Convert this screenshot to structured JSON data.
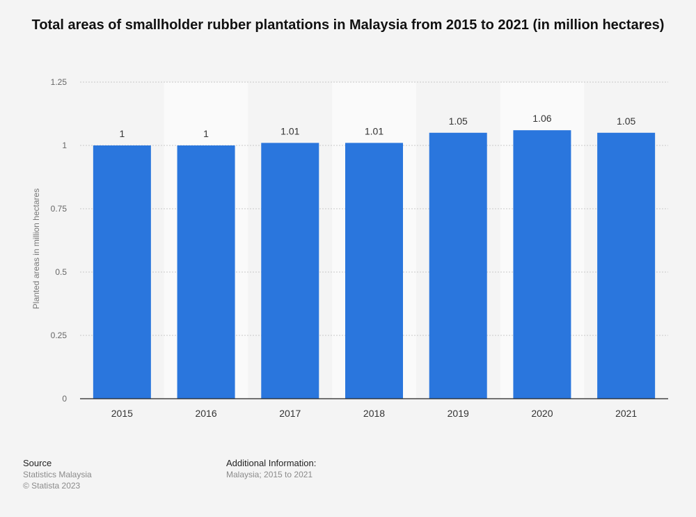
{
  "chart_data": {
    "type": "bar",
    "title": "Total areas of smallholder rubber plantations in Malaysia from 2015 to 2021 (in million hectares)",
    "categories": [
      "2015",
      "2016",
      "2017",
      "2018",
      "2019",
      "2020",
      "2021"
    ],
    "values": [
      1,
      1,
      1.01,
      1.01,
      1.05,
      1.06,
      1.05
    ],
    "value_labels": [
      "1",
      "1",
      "1.01",
      "1.01",
      "1.05",
      "1.06",
      "1.05"
    ],
    "xlabel": "",
    "ylabel": "Planted areas in million hectares",
    "ylim": [
      0,
      1.25
    ],
    "yticks": [
      0,
      0.25,
      0.5,
      0.75,
      1,
      1.25
    ],
    "ytick_labels": [
      "0",
      "0.25",
      "0.5",
      "0.75",
      "1",
      "1.25"
    ],
    "grid": true,
    "bar_color": "#2a76dd"
  },
  "footer": {
    "source_heading": "Source",
    "source_name": "Statistics Malaysia",
    "copyright": "© Statista 2023",
    "additional_heading": "Additional Information:",
    "additional_text": "Malaysia; 2015 to 2021"
  }
}
